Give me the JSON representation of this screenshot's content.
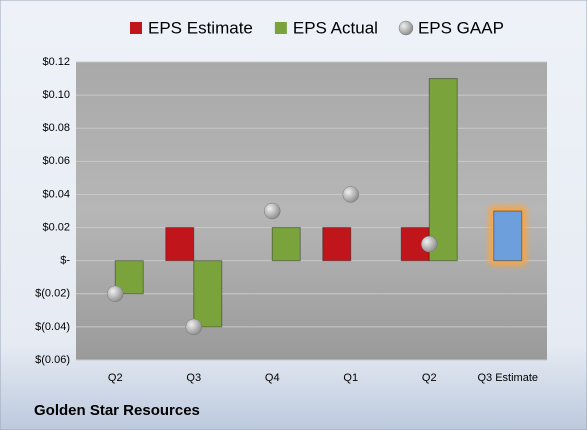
{
  "chart_data": {
    "type": "bar",
    "categories": [
      "Q2",
      "Q3",
      "Q4",
      "Q1",
      "Q2",
      "Q3 Estimate"
    ],
    "series": [
      {
        "name": "EPS Estimate",
        "color": "#c0161b",
        "values": [
          null,
          0.02,
          null,
          0.02,
          0.02,
          0.03
        ],
        "colors": [
          null,
          "#c0161b",
          null,
          "#c0161b",
          "#c0161b",
          "#6d9fdc"
        ]
      },
      {
        "name": "EPS Actual",
        "color": "#7aa33c",
        "values": [
          -0.02,
          -0.04,
          0.02,
          null,
          0.11,
          null
        ]
      },
      {
        "name": "EPS GAAP",
        "color": "#b4b4b4",
        "marker": "circle",
        "values": [
          -0.02,
          -0.04,
          0.03,
          0.04,
          0.01,
          null
        ]
      }
    ],
    "ylim": [
      -0.06,
      0.12
    ],
    "yticks": [
      {
        "value": 0.12,
        "label": "$0.12"
      },
      {
        "value": 0.1,
        "label": "$0.10"
      },
      {
        "value": 0.08,
        "label": "$0.08"
      },
      {
        "value": 0.06,
        "label": "$0.06"
      },
      {
        "value": 0.04,
        "label": "$0.04"
      },
      {
        "value": 0.02,
        "label": "$0.02"
      },
      {
        "value": 0,
        "label": "$-"
      },
      {
        "value": -0.02,
        "label": "$(0.02)"
      },
      {
        "value": -0.04,
        "label": "$(0.04)"
      },
      {
        "value": -0.06,
        "label": "$(0.06)"
      }
    ],
    "grid": true,
    "legend": "top",
    "footer": "Golden Star Resources"
  }
}
